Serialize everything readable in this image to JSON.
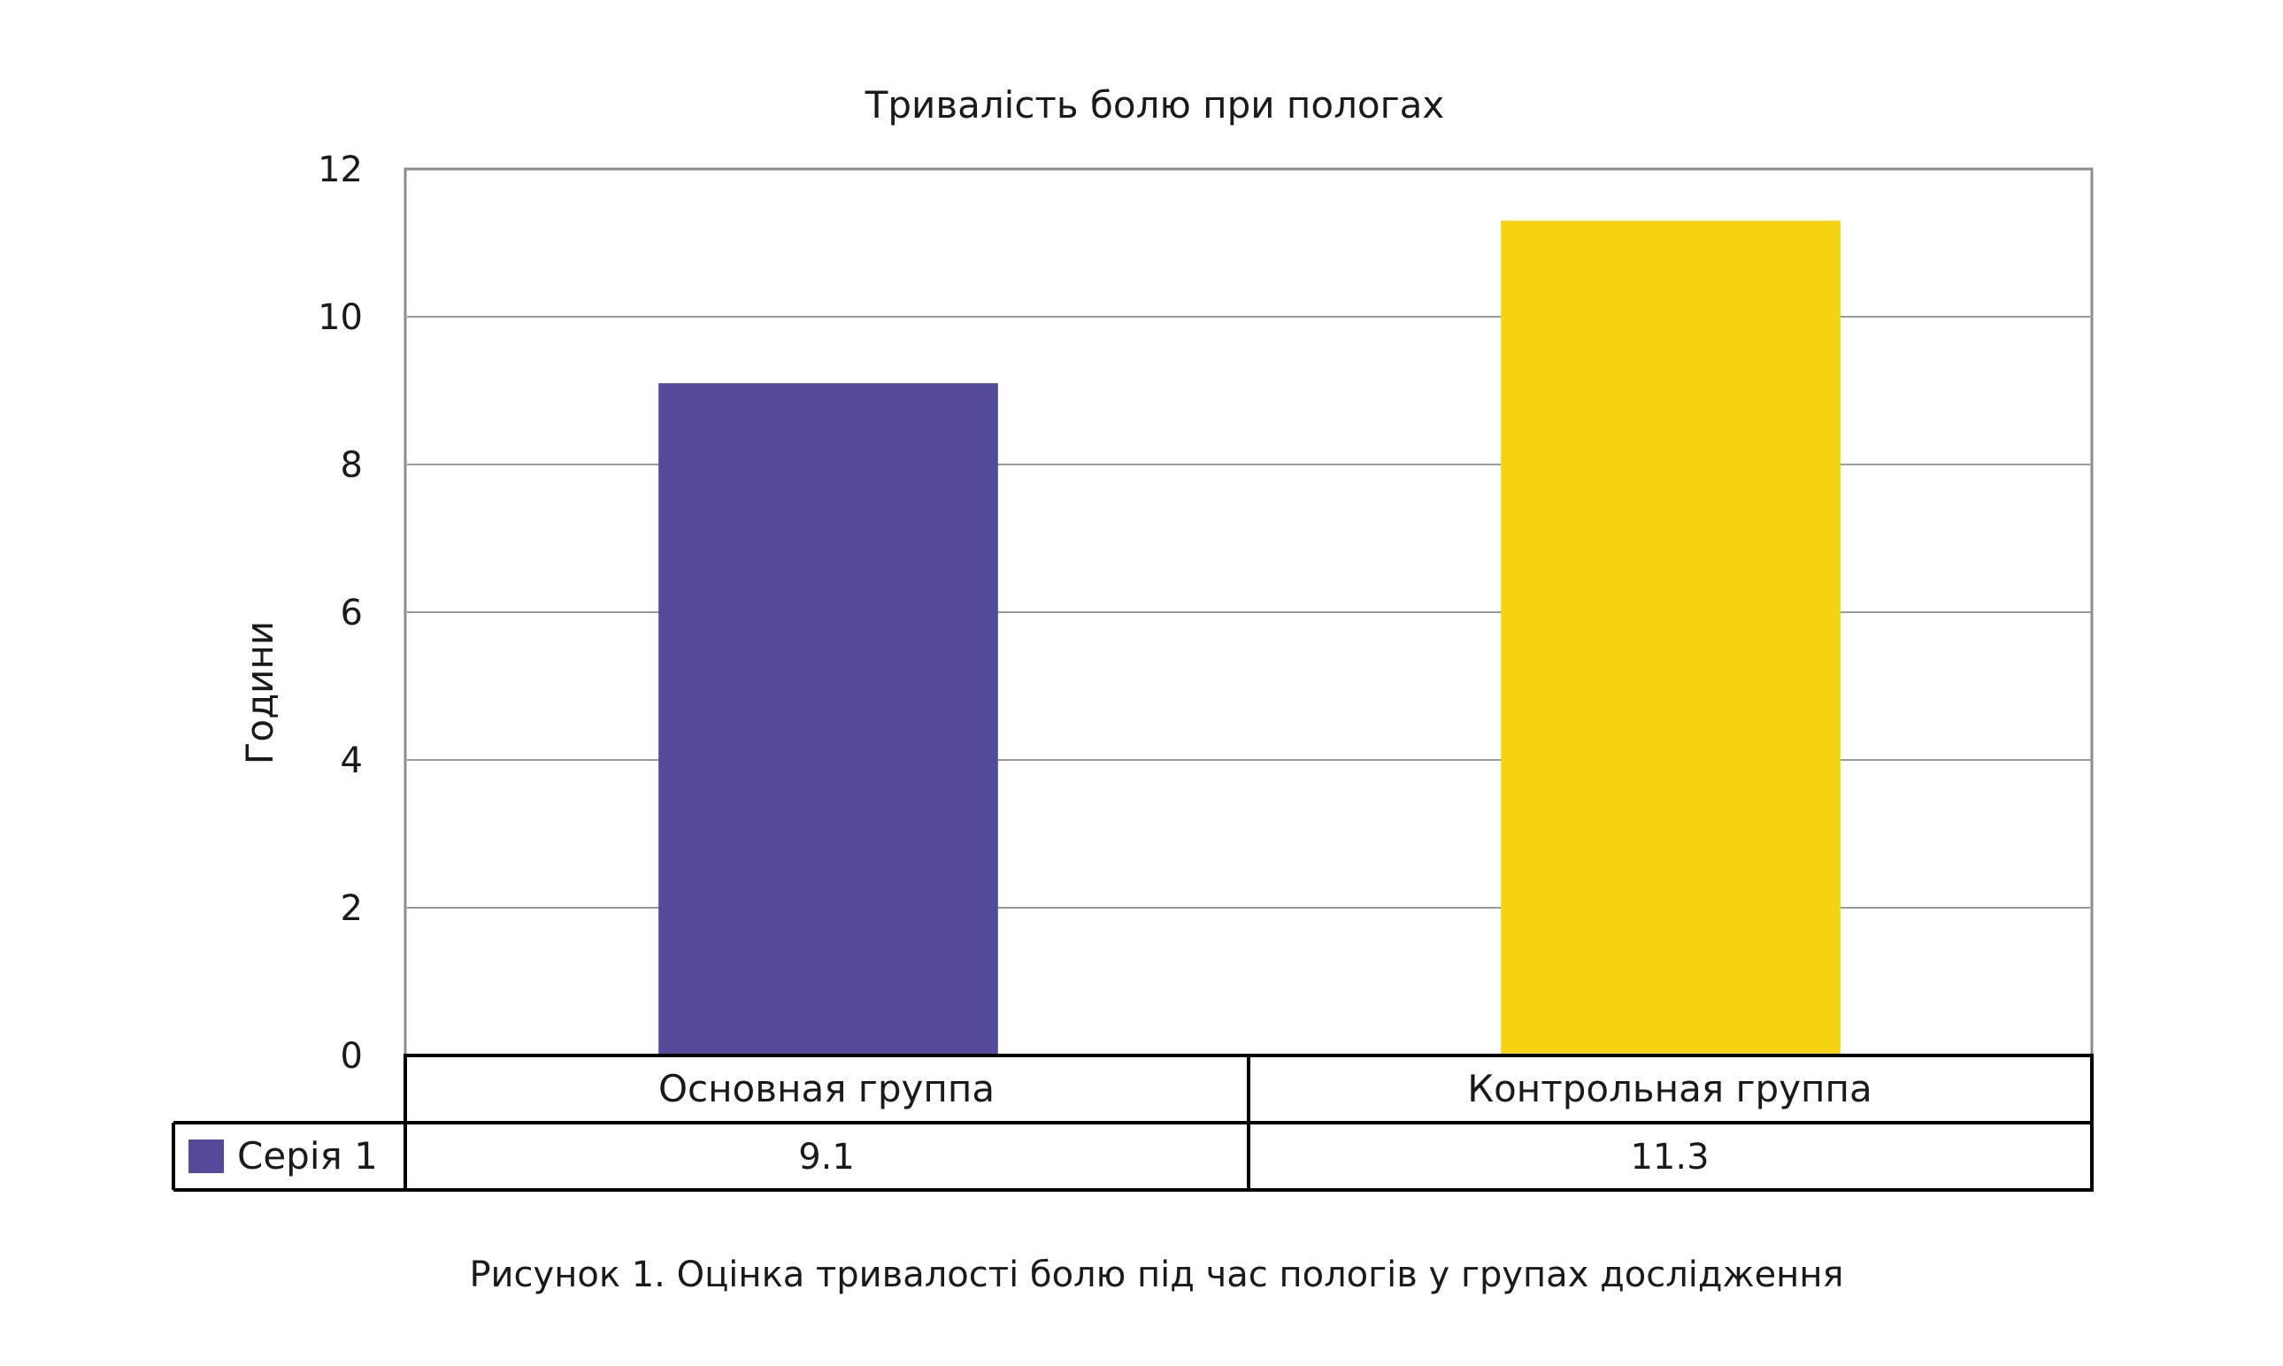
{
  "chart_data": {
    "type": "bar",
    "title": "Тривалість болю при пологах",
    "ylabel": "Години",
    "xlabel": "",
    "ylim": [
      0,
      12
    ],
    "yticks": [
      0,
      2,
      4,
      6,
      8,
      10,
      12
    ],
    "grid": true,
    "categories": [
      "Основная группа",
      "Контрольная группа"
    ],
    "series": [
      {
        "name": "Серія 1",
        "values": [
          9.1,
          11.3
        ],
        "value_labels": [
          "9.1",
          "11.3"
        ],
        "colors": [
          "#554a9a",
          "#f5d311"
        ]
      }
    ],
    "data_table": true
  },
  "caption": "Рисунок 1. Оцінка тривалості болю під час пологів у групах дослідження"
}
